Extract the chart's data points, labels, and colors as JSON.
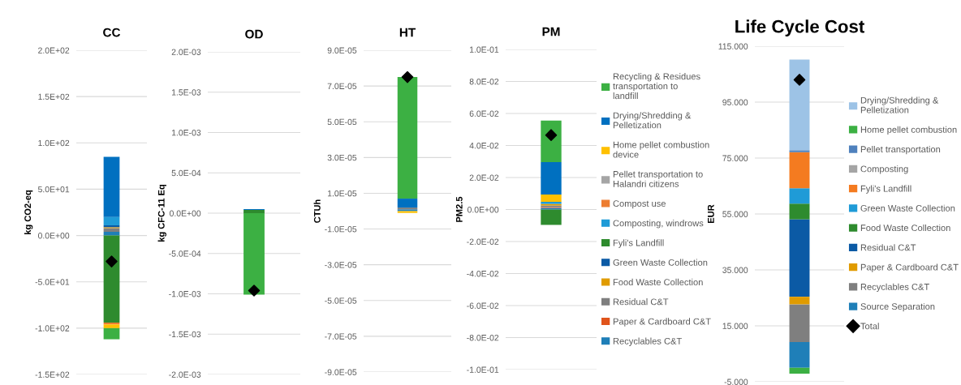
{
  "chart_data": [
    {
      "type": "bar",
      "stacked": true,
      "title": "CC",
      "ylabel": "kg CO2-eq",
      "categories": [
        null
      ],
      "ylim": [
        -150,
        200
      ],
      "yticks": [
        {
          "value": -150,
          "label": "-1.5E+02"
        },
        {
          "value": -100,
          "label": "-1.0E+02"
        },
        {
          "value": -50,
          "label": "-5.0E+01"
        },
        {
          "value": 0,
          "label": "0.0E+00"
        },
        {
          "value": 50,
          "label": "5.0E+01"
        },
        {
          "value": 100,
          "label": "1.0E+02"
        },
        {
          "value": 150,
          "label": "1.5E+02"
        },
        {
          "value": 200,
          "label": "2.0E+02"
        }
      ],
      "grid": "y",
      "legend": false,
      "series": [
        {
          "color": "#1f7fb8",
          "values": [
            4
          ]
        },
        {
          "color": "#7f7f7f",
          "values": [
            4
          ]
        },
        {
          "color": "#e09b00",
          "values": [
            1
          ]
        },
        {
          "color": "#0b5aa5",
          "values": [
            2
          ]
        },
        {
          "color": "#2e8b2e",
          "values": [
            -94
          ]
        },
        {
          "color": "#1f9bd7",
          "values": [
            9
          ]
        },
        {
          "color": "#ed7d31",
          "values": [
            -2
          ]
        },
        {
          "color": "#ffc000",
          "values": [
            -4
          ]
        },
        {
          "color": "#0070c0",
          "values": [
            65
          ]
        },
        {
          "color": "#3cb043",
          "values": [
            -12
          ]
        },
        {
          "type": "scatter",
          "marker": "diamond",
          "color": "#000000",
          "values": [
            -28
          ]
        }
      ]
    },
    {
      "type": "bar",
      "stacked": true,
      "title": "OD",
      "ylabel": "kg CFC-11 Eq",
      "categories": [
        null
      ],
      "ylim": [
        -0.002,
        0.002
      ],
      "yticks": [
        {
          "value": -0.002,
          "label": "-2.0E-03"
        },
        {
          "value": -0.0015,
          "label": "-1.5E-03"
        },
        {
          "value": -0.001,
          "label": "-1.0E-03"
        },
        {
          "value": -0.0005,
          "label": "-5.0E-04"
        },
        {
          "value": 0,
          "label": "0.0E+00"
        },
        {
          "value": 0.0005,
          "label": "5.0E-04"
        },
        {
          "value": 0.001,
          "label": "1.0E-03"
        },
        {
          "value": 0.0015,
          "label": "1.5E-03"
        },
        {
          "value": 0.002,
          "label": "2.0E-03"
        }
      ],
      "grid": "y",
      "legend": false,
      "series": [
        {
          "color": "#2e8b2e",
          "values": [
            4e-05
          ]
        },
        {
          "color": "#0070c0",
          "values": [
            1e-05
          ]
        },
        {
          "color": "#3cb043",
          "values": [
            -0.00101
          ]
        },
        {
          "type": "scatter",
          "marker": "diamond",
          "color": "#000000",
          "values": [
            -0.00096
          ]
        }
      ]
    },
    {
      "type": "bar",
      "stacked": true,
      "title": "HT",
      "ylabel": "CTUh",
      "categories": [
        null
      ],
      "ylim": [
        -9e-05,
        9e-05
      ],
      "yticks": [
        {
          "value": -9e-05,
          "label": "-9.0E-05"
        },
        {
          "value": -7e-05,
          "label": "-7.0E-05"
        },
        {
          "value": -5e-05,
          "label": "-5.0E-05"
        },
        {
          "value": -3e-05,
          "label": "-3.0E-05"
        },
        {
          "value": -1e-05,
          "label": "-1.0E-05"
        },
        {
          "value": 1e-05,
          "label": "1.0E-05"
        },
        {
          "value": 3e-05,
          "label": "3.0E-05"
        },
        {
          "value": 5e-05,
          "label": "5.0E-05"
        },
        {
          "value": 7e-05,
          "label": "7.0E-05"
        },
        {
          "value": 9e-05,
          "label": "9.0E-05"
        }
      ],
      "grid": "y",
      "legend": false,
      "series": [
        {
          "color": "#1f7fb8",
          "values": [
            1e-06
          ]
        },
        {
          "color": "#7f7f7f",
          "values": [
            1e-06
          ]
        },
        {
          "color": "#ffc000",
          "values": [
            -1e-06
          ]
        },
        {
          "color": "#0070c0",
          "values": [
            5e-06
          ]
        },
        {
          "color": "#3cb043",
          "values": [
            6.8e-05
          ]
        },
        {
          "type": "scatter",
          "marker": "diamond",
          "color": "#000000",
          "values": [
            7.5e-05
          ]
        }
      ]
    },
    {
      "type": "bar",
      "stacked": true,
      "title": "PM",
      "ylabel": "PM2.5",
      "categories": [
        null
      ],
      "ylim": [
        -0.1,
        0.1
      ],
      "yticks": [
        {
          "value": -0.1,
          "label": "-1.0E-01"
        },
        {
          "value": -0.08,
          "label": "-8.0E-02"
        },
        {
          "value": -0.06,
          "label": "-6.0E-02"
        },
        {
          "value": -0.04,
          "label": "-4.0E-02"
        },
        {
          "value": -0.02,
          "label": "-2.0E-02"
        },
        {
          "value": 0,
          "label": "0.0E+00"
        },
        {
          "value": 0.02,
          "label": "2.0E-02"
        },
        {
          "value": 0.04,
          "label": "4.0E-02"
        },
        {
          "value": 0.06,
          "label": "6.0E-02"
        },
        {
          "value": 0.08,
          "label": "8.0E-02"
        },
        {
          "value": 0.1,
          "label": "1.0E-01"
        }
      ],
      "grid": "y",
      "legend": "right",
      "series": [
        {
          "name": "Recyclables C&T",
          "color": "#1f7fb8",
          "values": [
            0.001
          ]
        },
        {
          "name": "Paper & Cardboard C&T",
          "color": "#e0541c",
          "values": [
            0.0005
          ]
        },
        {
          "name": "Residual C&T",
          "color": "#7f7f7f",
          "values": [
            0.001
          ]
        },
        {
          "name": "Food Waste Collection",
          "color": "#e09b00",
          "values": [
            0.001
          ]
        },
        {
          "name": "Green Waste Collection",
          "color": "#0b5aa5",
          "values": [
            null
          ]
        },
        {
          "name": "Fyli's Landfill",
          "color": "#2e8b2e",
          "values": [
            -0.0096
          ]
        },
        {
          "name": "Composting, windrows",
          "color": "#1f9bd7",
          "values": [
            0.0013
          ]
        },
        {
          "name": "Compost use",
          "color": "#ed7d31",
          "values": [
            null
          ]
        },
        {
          "name": "Pellet transportation to Halandri citizens",
          "color": "#a5a5a5",
          "values": [
            null
          ]
        },
        {
          "name": "Home pellet combustion device",
          "color": "#ffc000",
          "values": [
            0.0046
          ]
        },
        {
          "name": "Drying/Shredding & Pelletization",
          "color": "#0070c0",
          "values": [
            0.0202
          ]
        },
        {
          "name": "Recycling & Residues transportation to landfill",
          "color": "#3cb043",
          "values": [
            0.026
          ]
        },
        {
          "type": "scatter",
          "marker": "diamond",
          "color": "#000000",
          "values": [
            0.0465
          ]
        }
      ]
    },
    {
      "type": "bar",
      "stacked": true,
      "title": "Life Cycle Cost",
      "ylabel": "EUR",
      "categories": [
        null
      ],
      "ylim": [
        -5,
        115
      ],
      "yticks": [
        {
          "value": -5,
          "label": "-5.000"
        },
        {
          "value": 15,
          "label": "15.000"
        },
        {
          "value": 35,
          "label": "35.000"
        },
        {
          "value": 55,
          "label": "55.000"
        },
        {
          "value": 75,
          "label": "75.000"
        },
        {
          "value": 95,
          "label": "95.000"
        },
        {
          "value": 115,
          "label": "115.000"
        }
      ],
      "grid": "y",
      "legend": "right",
      "series": [
        {
          "name": "Source Separation",
          "color": "#1f7fb8",
          "values": [
            9.2
          ]
        },
        {
          "name": "Recyclables C&T",
          "color": "#7f7f7f",
          "values": [
            13.5
          ]
        },
        {
          "name": "Paper & Cardboard C&T",
          "color": "#e09b00",
          "values": [
            2.7
          ]
        },
        {
          "name": "Residual C&T",
          "color": "#0b5aa5",
          "values": [
            27.7
          ]
        },
        {
          "name": "Food Waste Collection",
          "color": "#2e8b2e",
          "values": [
            5.6
          ]
        },
        {
          "name": "Green Waste Collection",
          "color": "#1f9bd7",
          "values": [
            5.5
          ]
        },
        {
          "name": "Fyli's Landfill",
          "color": "#f47b20",
          "values": [
            12.9
          ]
        },
        {
          "name": "Composting",
          "color": "#a5a5a5",
          "values": [
            null
          ]
        },
        {
          "name": "Pellet transportation",
          "color": "#4f81bd",
          "values": [
            0.7
          ]
        },
        {
          "name": "Home pellet combustion",
          "color": "#3cb043",
          "values": [
            -2.1
          ]
        },
        {
          "name": "Drying/Shredding & Pelletization",
          "color": "#9dc3e6",
          "values": [
            32.4
          ]
        },
        {
          "type": "scatter",
          "marker": "diamond",
          "name": "Total",
          "color": "#000000",
          "values": [
            103
          ]
        }
      ]
    }
  ]
}
